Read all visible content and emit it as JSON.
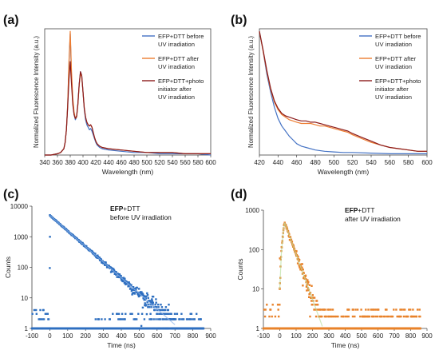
{
  "figure": {
    "panels": [
      {
        "id": "a",
        "label": "(a)",
        "type": "line",
        "xlabel": "Wavelength (nm)",
        "ylabel": "Normalized Fluorescence Intensity (a.u.)",
        "xlim": [
          340,
          600
        ],
        "xticks": [
          "340",
          "360",
          "380",
          "400",
          "420",
          "440",
          "460",
          "480",
          "500",
          "520",
          "540",
          "560",
          "580",
          "600"
        ],
        "ylim": [
          0,
          1
        ],
        "legend_position": "top-right",
        "legend": [
          {
            "text": [
              "EFP+DTT before",
              "UV irradiation"
            ],
            "color": "#4472C4"
          },
          {
            "text": [
              "EFP+DTT after",
              "UV irradiation"
            ],
            "color": "#ED7D31"
          },
          {
            "text": [
              "EFP+DTT+photo",
              "initiator after",
              "UV irradiation"
            ],
            "color": "#8B1A1A"
          }
        ]
      },
      {
        "id": "b",
        "label": "(b)",
        "type": "line",
        "xlabel": "Wavelength (nm)",
        "ylabel": "Normalized Fluorescence Intensity (a.u.)",
        "xlim": [
          420,
          600
        ],
        "xticks": [
          "420",
          "440",
          "460",
          "480",
          "500",
          "520",
          "540",
          "560",
          "580",
          "600"
        ],
        "ylim": [
          0,
          1
        ],
        "legend_position": "top-right",
        "legend": [
          {
            "text": [
              "EFP+DTT before",
              "UV irradiation"
            ],
            "color": "#4472C4"
          },
          {
            "text": [
              "EFP+DTT after",
              "UV irradiation"
            ],
            "color": "#ED7D31"
          },
          {
            "text": [
              "EFP+DTT+photo",
              "initiator after",
              "UV irradiation"
            ],
            "color": "#8B1A1A"
          }
        ]
      },
      {
        "id": "c",
        "label": "(c)",
        "type": "scatter",
        "xlabel": "Time (ns)",
        "ylabel": "Counts",
        "xlim": [
          -100,
          900
        ],
        "xticks": [
          "-100",
          "0",
          "100",
          "200",
          "300",
          "400",
          "500",
          "600",
          "700",
          "800",
          "900"
        ],
        "yscale": "log",
        "ylim": [
          1,
          10000
        ],
        "yticks": [
          "1",
          "10",
          "100",
          "1000",
          "10000"
        ],
        "annotation_bold": "EFP",
        "annotation_rest": "+DTT",
        "annotation_line2": "before UV irradiation",
        "color": "#2E6FC0"
      },
      {
        "id": "d",
        "label": "(d)",
        "type": "scatter",
        "xlabel": "Time (ns)",
        "ylabel": "Counts",
        "xlim": [
          -100,
          900
        ],
        "xticks": [
          "-100",
          "0",
          "100",
          "200",
          "300",
          "400",
          "500",
          "600",
          "700",
          "800",
          "900"
        ],
        "yscale": "log",
        "ylim": [
          1,
          1000
        ],
        "yticks": [
          "1",
          "10",
          "100",
          "1000"
        ],
        "annotation_bold": "EFP",
        "annotation_rest": "+DTT",
        "annotation_line2": "after UV irradiation",
        "color": "#E8822A"
      }
    ]
  },
  "chart_data": [
    {
      "type": "line",
      "xlabel": "Wavelength (nm)",
      "ylabel": "Normalized Fluorescence Intensity (a.u.)",
      "xlim": [
        340,
        600
      ],
      "ylim": [
        0,
        1
      ],
      "series": [
        {
          "name": "EFP+DTT before UV irradiation",
          "color": "#4472C4",
          "x": [
            340,
            350,
            360,
            365,
            370,
            372,
            374,
            376,
            378,
            380,
            382,
            384,
            386,
            388,
            390,
            392,
            394,
            396,
            398,
            400,
            402,
            404,
            406,
            408,
            410,
            412,
            414,
            416,
            418,
            420,
            422,
            424,
            426,
            430,
            440,
            460,
            480,
            500,
            520,
            540,
            560,
            580,
            600
          ],
          "y": [
            0.0,
            0.0,
            0.01,
            0.02,
            0.05,
            0.1,
            0.2,
            0.4,
            0.72,
            0.96,
            0.62,
            0.42,
            0.32,
            0.28,
            0.3,
            0.4,
            0.56,
            0.66,
            0.63,
            0.5,
            0.36,
            0.28,
            0.24,
            0.22,
            0.2,
            0.21,
            0.19,
            0.16,
            0.13,
            0.1,
            0.08,
            0.07,
            0.06,
            0.05,
            0.04,
            0.03,
            0.02,
            0.02,
            0.01,
            0.01,
            0.01,
            0.01,
            0.0
          ]
        },
        {
          "name": "EFP+DTT after UV irradiation",
          "color": "#ED7D31",
          "x": [
            340,
            350,
            360,
            365,
            370,
            372,
            374,
            376,
            378,
            380,
            382,
            384,
            386,
            388,
            390,
            392,
            394,
            396,
            398,
            400,
            402,
            404,
            406,
            408,
            410,
            412,
            414,
            416,
            418,
            420,
            422,
            424,
            426,
            430,
            440,
            460,
            480,
            500,
            520,
            540,
            560,
            580,
            600
          ],
          "y": [
            0.0,
            0.0,
            0.01,
            0.02,
            0.05,
            0.1,
            0.2,
            0.4,
            0.74,
            0.98,
            0.66,
            0.45,
            0.34,
            0.29,
            0.3,
            0.4,
            0.55,
            0.65,
            0.62,
            0.5,
            0.37,
            0.3,
            0.26,
            0.24,
            0.23,
            0.24,
            0.22,
            0.18,
            0.14,
            0.11,
            0.09,
            0.08,
            0.07,
            0.06,
            0.05,
            0.04,
            0.03,
            0.02,
            0.02,
            0.02,
            0.01,
            0.01,
            0.01
          ]
        },
        {
          "name": "EFP+DTT+photo initiator after UV irradiation",
          "color": "#8B1A1A",
          "x": [
            340,
            350,
            360,
            365,
            370,
            372,
            374,
            376,
            378,
            380,
            382,
            384,
            386,
            388,
            390,
            392,
            394,
            396,
            398,
            400,
            402,
            404,
            406,
            408,
            410,
            412,
            414,
            416,
            418,
            420,
            422,
            424,
            426,
            430,
            440,
            460,
            480,
            500,
            520,
            540,
            560,
            580,
            600
          ],
          "y": [
            0.0,
            0.0,
            0.01,
            0.02,
            0.05,
            0.1,
            0.2,
            0.38,
            0.6,
            0.74,
            0.56,
            0.4,
            0.32,
            0.29,
            0.31,
            0.41,
            0.56,
            0.66,
            0.63,
            0.5,
            0.37,
            0.3,
            0.26,
            0.24,
            0.23,
            0.24,
            0.22,
            0.18,
            0.14,
            0.11,
            0.09,
            0.08,
            0.07,
            0.06,
            0.05,
            0.04,
            0.03,
            0.02,
            0.02,
            0.02,
            0.01,
            0.01,
            0.01
          ]
        }
      ]
    },
    {
      "type": "line",
      "xlabel": "Wavelength (nm)",
      "ylabel": "Normalized Fluorescence Intensity (a.u.)",
      "xlim": [
        420,
        600
      ],
      "ylim": [
        0,
        1
      ],
      "series": [
        {
          "name": "EFP+DTT before UV irradiation",
          "color": "#4472C4",
          "x": [
            420,
            424,
            428,
            432,
            436,
            440,
            444,
            448,
            452,
            456,
            460,
            465,
            470,
            480,
            490,
            500,
            510,
            520,
            540,
            560,
            580,
            600
          ],
          "y": [
            0.98,
            0.82,
            0.64,
            0.5,
            0.38,
            0.29,
            0.23,
            0.19,
            0.15,
            0.12,
            0.09,
            0.07,
            0.06,
            0.04,
            0.03,
            0.025,
            0.02,
            0.02,
            0.015,
            0.01,
            0.01,
            0.01
          ]
        },
        {
          "name": "EFP+DTT after UV irradiation",
          "color": "#ED7D31",
          "x": [
            420,
            424,
            428,
            432,
            436,
            440,
            444,
            448,
            452,
            456,
            460,
            465,
            470,
            475,
            480,
            485,
            490,
            495,
            500,
            505,
            510,
            515,
            520,
            530,
            540,
            550,
            560,
            570,
            580,
            590,
            600
          ],
          "y": [
            0.98,
            0.82,
            0.66,
            0.52,
            0.42,
            0.36,
            0.32,
            0.3,
            0.28,
            0.27,
            0.26,
            0.25,
            0.25,
            0.25,
            0.24,
            0.23,
            0.23,
            0.22,
            0.21,
            0.2,
            0.19,
            0.18,
            0.16,
            0.13,
            0.1,
            0.08,
            0.06,
            0.05,
            0.04,
            0.03,
            0.03
          ]
        },
        {
          "name": "EFP+DTT+photo initiator after UV irradiation",
          "color": "#8B1A1A",
          "x": [
            420,
            424,
            428,
            432,
            436,
            440,
            444,
            448,
            452,
            456,
            460,
            465,
            470,
            475,
            480,
            485,
            490,
            495,
            500,
            505,
            510,
            515,
            520,
            530,
            540,
            550,
            560,
            570,
            580,
            590,
            600
          ],
          "y": [
            0.98,
            0.83,
            0.67,
            0.53,
            0.43,
            0.37,
            0.33,
            0.31,
            0.3,
            0.29,
            0.28,
            0.27,
            0.27,
            0.26,
            0.26,
            0.25,
            0.24,
            0.23,
            0.22,
            0.21,
            0.2,
            0.19,
            0.17,
            0.14,
            0.11,
            0.08,
            0.06,
            0.05,
            0.04,
            0.03,
            0.03
          ]
        }
      ]
    },
    {
      "type": "scatter",
      "xlabel": "Time (ns)",
      "ylabel": "Counts",
      "xlim": [
        -100,
        900
      ],
      "yscale": "log",
      "ylim": [
        1,
        10000
      ],
      "series": [
        {
          "name": "EFP+DTT before UV irradiation",
          "color": "#2E6FC0",
          "decay_start_time_ns": 0,
          "peak_counts": 5000,
          "decay_lifetime_ns": 85,
          "x": [
            0,
            50,
            100,
            150,
            200,
            250,
            300,
            350,
            400,
            450,
            500,
            550,
            600
          ],
          "y": [
            5000,
            2800,
            1500,
            830,
            460,
            250,
            140,
            78,
            43,
            24,
            13,
            7,
            4
          ]
        }
      ]
    },
    {
      "type": "scatter",
      "xlabel": "Time (ns)",
      "ylabel": "Counts",
      "xlim": [
        -100,
        900
      ],
      "yscale": "log",
      "ylim": [
        1,
        1000
      ],
      "series": [
        {
          "name": "EFP+DTT after UV irradiation",
          "color": "#E8822A",
          "rise_start_time_ns": 0,
          "peak_time_ns": 30,
          "peak_counts": 480,
          "decay_lifetime_ns": 38,
          "x": [
            0,
            30,
            50,
            100,
            150,
            200,
            250,
            300,
            350
          ],
          "y": [
            120,
            480,
            430,
            120,
            35,
            10,
            3,
            1.5,
            1
          ]
        }
      ]
    }
  ]
}
